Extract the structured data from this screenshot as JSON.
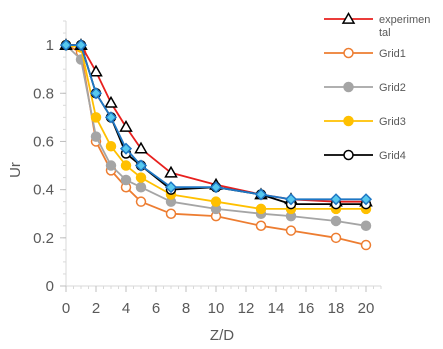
{
  "chart_data": {
    "type": "line",
    "xlabel": "Z/D",
    "ylabel": "Ur",
    "xlim": [
      0,
      21
    ],
    "ylim": [
      0,
      1.1
    ],
    "x_ticks": [
      0,
      2,
      4,
      6,
      8,
      10,
      12,
      14,
      16,
      18,
      20
    ],
    "y_ticks": [
      0,
      0.2,
      0.4,
      0.6,
      0.8,
      1
    ],
    "x_tick_labels": [
      "0",
      "2",
      "4",
      "6",
      "8",
      "10",
      "12",
      "14",
      "16",
      "18",
      "20"
    ],
    "y_tick_labels": [
      "0",
      "0.2",
      "0.4",
      "0.6",
      "0.8",
      "1"
    ],
    "legend_position": "right",
    "grid": false,
    "series": [
      {
        "name": "experimental",
        "legend_lines": [
          "experimen",
          "tal"
        ],
        "color": "#e8201e",
        "marker": "triangle",
        "marker_fill": "#ffffff",
        "marker_stroke": "#000000",
        "x": [
          0,
          1,
          2,
          3,
          4,
          5,
          7,
          10,
          13,
          15,
          18,
          20
        ],
        "y": [
          1.0,
          1.0,
          0.89,
          0.76,
          0.66,
          0.57,
          0.47,
          0.42,
          0.38,
          0.36,
          0.35,
          0.35
        ]
      },
      {
        "name": "Grid1",
        "color": "#ed7d31",
        "marker": "circle",
        "marker_fill": "#ffffff",
        "marker_stroke": "#ed7d31",
        "x": [
          0,
          1,
          2,
          3,
          4,
          5,
          7,
          10,
          13,
          15,
          18,
          20
        ],
        "y": [
          1.0,
          0.97,
          0.6,
          0.48,
          0.41,
          0.35,
          0.3,
          0.29,
          0.25,
          0.23,
          0.2,
          0.17
        ]
      },
      {
        "name": "Grid2",
        "color": "#a5a5a5",
        "marker": "circle",
        "marker_fill": "#a5a5a5",
        "marker_stroke": "#a5a5a5",
        "x": [
          0,
          1,
          2,
          3,
          4,
          5,
          7,
          10,
          13,
          15,
          18,
          20
        ],
        "y": [
          1.0,
          0.94,
          0.62,
          0.5,
          0.44,
          0.41,
          0.35,
          0.32,
          0.3,
          0.29,
          0.27,
          0.25
        ]
      },
      {
        "name": "Grid3",
        "color": "#ffc000",
        "marker": "circle",
        "marker_fill": "#ffc000",
        "marker_stroke": "#ffc000",
        "x": [
          0,
          1,
          2,
          3,
          4,
          5,
          7,
          10,
          13,
          15,
          18,
          20
        ],
        "y": [
          1.0,
          0.99,
          0.7,
          0.58,
          0.5,
          0.45,
          0.38,
          0.35,
          0.32,
          0.32,
          0.32,
          0.32
        ]
      },
      {
        "name": "Grid4",
        "color": "#000000",
        "marker": "circle",
        "marker_fill": "#ffffff",
        "marker_stroke": "#000000",
        "x": [
          0,
          1,
          2,
          3,
          4,
          5,
          7,
          10,
          13,
          15,
          18,
          20
        ],
        "y": [
          1.0,
          1.0,
          0.8,
          0.7,
          0.55,
          0.5,
          0.4,
          0.41,
          0.38,
          0.34,
          0.34,
          0.34
        ]
      },
      {
        "name": "",
        "color": "#1f77c4",
        "marker": "diamond",
        "marker_fill": "#56c8ee",
        "marker_stroke": "#1f77c4",
        "x": [
          0,
          1,
          2,
          3,
          4,
          5,
          7,
          10,
          13,
          15,
          18,
          20
        ],
        "y": [
          1.0,
          1.0,
          0.8,
          0.7,
          0.57,
          0.5,
          0.41,
          0.41,
          0.38,
          0.36,
          0.36,
          0.36
        ]
      }
    ]
  }
}
